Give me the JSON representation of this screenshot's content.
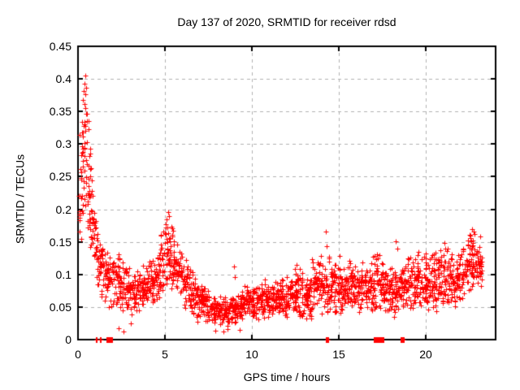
{
  "window": {
    "background": "#ffffff"
  },
  "chart": {
    "title": "Day 137 of 2020, SRMTID for receiver rdsd",
    "xlabel": "GPS time / hours",
    "ylabel": "SRMTID / TECUs"
  },
  "chart_data": {
    "type": "scatter",
    "title": "Day 137 of 2020, SRMTID for receiver rdsd",
    "xlabel": "GPS time / hours",
    "ylabel": "SRMTID / TECUs",
    "xlim": [
      0,
      24
    ],
    "ylim": [
      0,
      0.45
    ],
    "x_ticks": {
      "values": [
        0,
        5,
        10,
        15,
        20
      ],
      "labels": [
        "0",
        "5",
        "10",
        "15",
        "20"
      ]
    },
    "y_ticks": {
      "values": [
        0,
        0.05,
        0.1,
        0.15,
        0.2,
        0.25,
        0.3,
        0.35,
        0.4,
        0.45
      ],
      "labels": [
        "0",
        "0.05",
        "0.1",
        "0.15",
        "0.2",
        "0.25",
        "0.3",
        "0.35",
        "0.4",
        "0.45"
      ]
    },
    "grid": true,
    "grid_color": "#b0b0b0",
    "legend": false,
    "marker": {
      "shape": "plus",
      "size": 7,
      "color": "#ff0000"
    },
    "envelope_format": "[gps_hour, band_mean_TECU, band_halfspread_TECU, points_per_hour]",
    "envelope": [
      [
        0.05,
        0.2,
        0.09,
        110
      ],
      [
        0.2,
        0.27,
        0.12,
        130
      ],
      [
        0.45,
        0.3,
        0.11,
        130
      ],
      [
        0.7,
        0.21,
        0.09,
        110
      ],
      [
        1.0,
        0.145,
        0.055,
        100
      ],
      [
        1.3,
        0.115,
        0.05,
        95
      ],
      [
        1.7,
        0.095,
        0.045,
        95
      ],
      [
        2.1,
        0.085,
        0.04,
        95
      ],
      [
        2.6,
        0.088,
        0.048,
        95
      ],
      [
        3.1,
        0.07,
        0.035,
        95
      ],
      [
        3.6,
        0.075,
        0.035,
        95
      ],
      [
        4.1,
        0.085,
        0.04,
        95
      ],
      [
        4.6,
        0.105,
        0.05,
        100
      ],
      [
        5.1,
        0.135,
        0.058,
        105
      ],
      [
        5.45,
        0.128,
        0.055,
        100
      ],
      [
        5.8,
        0.105,
        0.05,
        95
      ],
      [
        6.2,
        0.085,
        0.04,
        95
      ],
      [
        6.7,
        0.065,
        0.035,
        95
      ],
      [
        7.2,
        0.055,
        0.03,
        95
      ],
      [
        7.7,
        0.05,
        0.027,
        95
      ],
      [
        8.2,
        0.045,
        0.025,
        95
      ],
      [
        8.7,
        0.042,
        0.022,
        95
      ],
      [
        9.2,
        0.05,
        0.027,
        95
      ],
      [
        9.7,
        0.057,
        0.03,
        95
      ],
      [
        10.2,
        0.06,
        0.032,
        95
      ],
      [
        10.7,
        0.065,
        0.032,
        95
      ],
      [
        11.2,
        0.06,
        0.03,
        95
      ],
      [
        11.7,
        0.065,
        0.033,
        95
      ],
      [
        12.2,
        0.07,
        0.036,
        95
      ],
      [
        12.7,
        0.072,
        0.042,
        95
      ],
      [
        13.2,
        0.07,
        0.038,
        95
      ],
      [
        13.7,
        0.08,
        0.042,
        95
      ],
      [
        14.2,
        0.088,
        0.05,
        95
      ],
      [
        14.6,
        0.08,
        0.042,
        95
      ],
      [
        15.1,
        0.075,
        0.04,
        95
      ],
      [
        15.6,
        0.08,
        0.042,
        95
      ],
      [
        16.1,
        0.075,
        0.04,
        95
      ],
      [
        16.6,
        0.08,
        0.04,
        95
      ],
      [
        17.1,
        0.088,
        0.048,
        95
      ],
      [
        17.6,
        0.082,
        0.042,
        95
      ],
      [
        18.1,
        0.075,
        0.04,
        95
      ],
      [
        18.6,
        0.08,
        0.04,
        95
      ],
      [
        19.1,
        0.088,
        0.046,
        95
      ],
      [
        19.6,
        0.096,
        0.05,
        95
      ],
      [
        20.1,
        0.088,
        0.046,
        95
      ],
      [
        20.6,
        0.092,
        0.048,
        95
      ],
      [
        21.1,
        0.1,
        0.048,
        95
      ],
      [
        21.6,
        0.088,
        0.042,
        95
      ],
      [
        22.0,
        0.1,
        0.046,
        95
      ],
      [
        22.5,
        0.12,
        0.05,
        100
      ],
      [
        22.9,
        0.125,
        0.04,
        100
      ],
      [
        23.25,
        0.11,
        0.035,
        70
      ]
    ],
    "outliers": [
      [
        0.4,
        0.405
      ],
      [
        0.36,
        0.393
      ],
      [
        0.47,
        0.386
      ],
      [
        2.35,
        0.018
      ],
      [
        2.6,
        0.013
      ],
      [
        3.05,
        0.025
      ],
      [
        5.18,
        0.196
      ],
      [
        5.24,
        0.19
      ],
      [
        5.1,
        0.185
      ],
      [
        7.9,
        0.014
      ],
      [
        8.35,
        0.012
      ],
      [
        8.6,
        0.016
      ],
      [
        9.3,
        0.015
      ],
      [
        8.98,
        0.112
      ],
      [
        9.02,
        0.096
      ],
      [
        12.55,
        0.115
      ],
      [
        13.45,
        0.124
      ],
      [
        13.5,
        0.118
      ],
      [
        14.24,
        0.166
      ],
      [
        14.27,
        0.143
      ],
      [
        15.05,
        0.128
      ],
      [
        16.35,
        0.118
      ],
      [
        18.28,
        0.151
      ],
      [
        18.33,
        0.14
      ],
      [
        19.55,
        0.135
      ],
      [
        20.0,
        0.132
      ],
      [
        21.05,
        0.148
      ],
      [
        21.1,
        0.14
      ],
      [
        22.66,
        0.17
      ],
      [
        22.72,
        0.166
      ],
      [
        22.8,
        0.162
      ],
      [
        23.1,
        0.158
      ]
    ],
    "zero_runs_format": "[start_hour, end_hour] clusters of zero-valued samples drawn on the x-axis",
    "zero_runs": [
      [
        1.05,
        1.1
      ],
      [
        1.25,
        1.31
      ],
      [
        1.65,
        2.0
      ],
      [
        14.25,
        14.45
      ],
      [
        17.0,
        17.6
      ],
      [
        18.55,
        18.75
      ]
    ]
  }
}
